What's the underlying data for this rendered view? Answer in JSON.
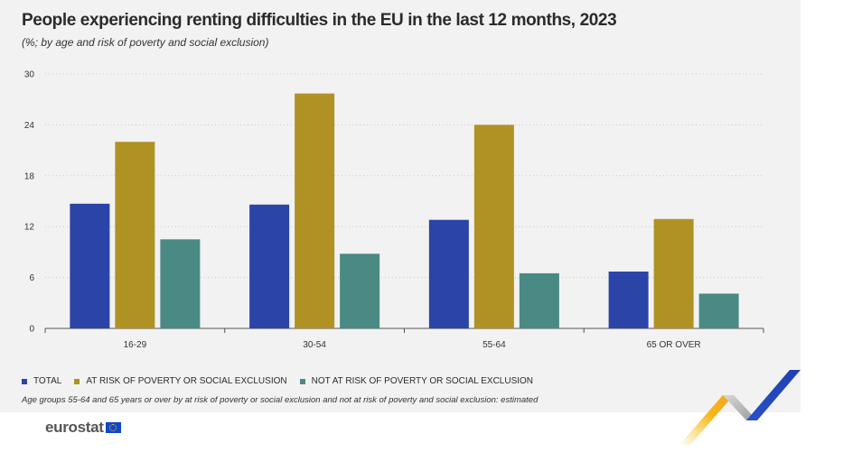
{
  "title": "People experiencing renting difficulties in the EU in the last 12 months, 2023",
  "subtitle": "(%; by age and risk of poverty and social exclusion)",
  "note": "Age groups 55-64 and 65 years or over by at risk of poverty or social exclusion and not at risk of poverty and social exclusion: estimated",
  "brand": "eurostat",
  "colors": {
    "total": "#2a44a8",
    "at_risk": "#b09224",
    "not_at_risk": "#4a8a84",
    "grid": "#c8c8c8",
    "axis": "#555555"
  },
  "chart_data": {
    "type": "bar",
    "categories": [
      "16-29",
      "30-54",
      "55-64",
      "65 OR OVER"
    ],
    "series": [
      {
        "name": "TOTAL",
        "values": [
          14.7,
          14.6,
          12.8,
          6.7
        ]
      },
      {
        "name": "AT RISK OF POVERTY OR SOCIAL EXCLUSION",
        "values": [
          22.0,
          27.7,
          24.0,
          12.9
        ]
      },
      {
        "name": "NOT AT RISK OF POVERTY OR SOCIAL EXCLUSION",
        "values": [
          10.5,
          8.8,
          6.5,
          4.1
        ]
      }
    ],
    "yticks": [
      0,
      6,
      12,
      18,
      24,
      30
    ],
    "ylim": [
      0,
      30
    ],
    "grid": true,
    "legend": "bottom-left"
  }
}
